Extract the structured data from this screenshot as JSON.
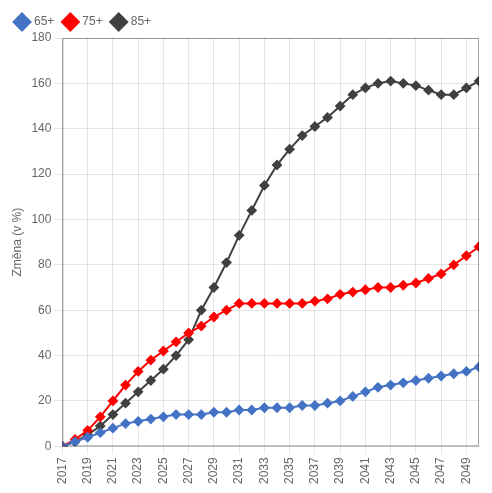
{
  "chart_data": {
    "type": "line",
    "x": [
      2017,
      2018,
      2019,
      2020,
      2021,
      2022,
      2023,
      2024,
      2025,
      2026,
      2027,
      2028,
      2029,
      2030,
      2031,
      2032,
      2033,
      2034,
      2035,
      2036,
      2037,
      2038,
      2039,
      2040,
      2041,
      2042,
      2043,
      2044,
      2045,
      2046,
      2047,
      2048,
      2049,
      2050
    ],
    "series": [
      {
        "name": "65+",
        "color": "#4472c4",
        "values": [
          0,
          2,
          4,
          6,
          8,
          10,
          11,
          12,
          13,
          14,
          14,
          14,
          15,
          15,
          16,
          16,
          17,
          17,
          17,
          18,
          18,
          19,
          20,
          22,
          24,
          26,
          27,
          28,
          29,
          30,
          31,
          32,
          33,
          35
        ]
      },
      {
        "name": "75+",
        "color": "#ff0000",
        "values": [
          0,
          3,
          7,
          13,
          20,
          27,
          33,
          38,
          42,
          46,
          50,
          53,
          57,
          60,
          63,
          63,
          63,
          63,
          63,
          63,
          64,
          65,
          67,
          68,
          69,
          70,
          70,
          71,
          72,
          74,
          76,
          80,
          84,
          88
        ]
      },
      {
        "name": "85+",
        "color": "#404040",
        "values": [
          0,
          2,
          5,
          9,
          14,
          19,
          24,
          29,
          34,
          40,
          47,
          60,
          70,
          81,
          93,
          104,
          115,
          124,
          131,
          137,
          141,
          145,
          150,
          155,
          158,
          160,
          161,
          160,
          159,
          157,
          155,
          155,
          158,
          161
        ]
      }
    ],
    "marker": "diamond",
    "ylabel": "Změna (v %)",
    "xlim": [
      2017,
      2050
    ],
    "xticks": [
      2017,
      2019,
      2021,
      2023,
      2025,
      2027,
      2029,
      2031,
      2033,
      2035,
      2037,
      2039,
      2041,
      2043,
      2045,
      2047,
      2049
    ],
    "ylim": [
      0,
      180
    ],
    "yticks": [
      0,
      20,
      40,
      60,
      80,
      100,
      120,
      140,
      160,
      180
    ],
    "grid": true,
    "legend": "upper left"
  }
}
